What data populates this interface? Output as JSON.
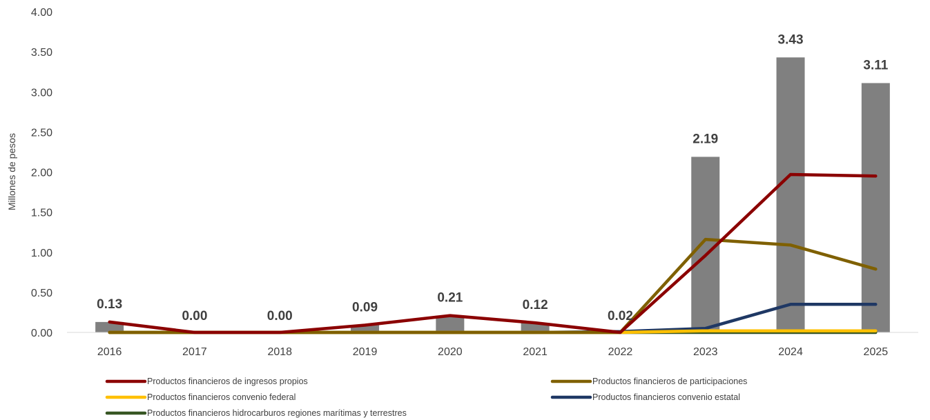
{
  "chart_data": {
    "type": "bar",
    "categories": [
      "2016",
      "2017",
      "2018",
      "2019",
      "2020",
      "2021",
      "2022",
      "2023",
      "2024",
      "2025"
    ],
    "bar_values": [
      0.13,
      0.0,
      0.0,
      0.09,
      0.21,
      0.12,
      0.02,
      2.19,
      3.43,
      3.11
    ],
    "bar_labels": [
      "0.13",
      "0.00",
      "0.00",
      "0.09",
      "0.21",
      "0.12",
      "0.02",
      "2.19",
      "3.43",
      "3.11"
    ],
    "bar_color": "#808080",
    "series": [
      {
        "name": "Productos financieros de ingresos propios",
        "color": "#8B0000",
        "values": [
          0.13,
          0.0,
          0.0,
          0.09,
          0.21,
          0.12,
          0.0,
          0.96,
          1.97,
          1.95
        ]
      },
      {
        "name": "Productos financieros de participaciones",
        "color": "#7F6000",
        "values": [
          0.0,
          0.0,
          0.0,
          0.0,
          0.0,
          0.0,
          0.0,
          1.16,
          1.09,
          0.79
        ]
      },
      {
        "name": "Productos financieros convenio federal",
        "color": "#FFC000",
        "values": [
          0.0,
          0.0,
          0.0,
          0.0,
          0.0,
          0.0,
          0.0,
          0.02,
          0.02,
          0.02
        ]
      },
      {
        "name": "Productos financieros convenio estatal",
        "color": "#1F3864",
        "values": [
          0.0,
          0.0,
          0.0,
          0.0,
          0.0,
          0.0,
          0.01,
          0.05,
          0.35,
          0.35
        ]
      },
      {
        "name": "Productos financieros hidrocarburos regiones marítimas y terrestres",
        "color": "#375623",
        "values": [
          0.0,
          0.0,
          0.0,
          0.0,
          0.0,
          0.0,
          0.0,
          0.0,
          0.0,
          0.0
        ]
      }
    ],
    "ylabel": "Millones de pesos",
    "ylim": [
      0,
      4
    ],
    "yticks": [
      "0.00",
      "0.50",
      "1.00",
      "1.50",
      "2.00",
      "2.50",
      "3.00",
      "3.50",
      "4.00"
    ],
    "grid": false,
    "legend_position": "bottom"
  }
}
